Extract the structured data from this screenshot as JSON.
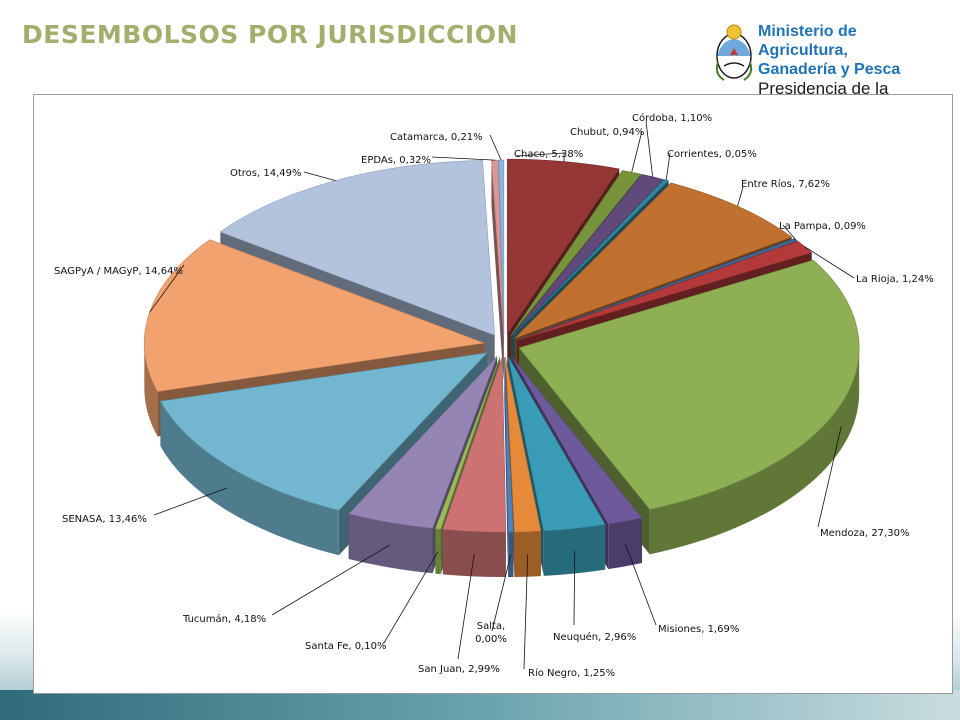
{
  "page": {
    "title": "DESEMBOLSOS POR JURISDICCION"
  },
  "logo": {
    "line1": "Ministerio de Agricultura,",
    "line2": "Ganadería y Pesca",
    "line3": "Presidencia de la Nación"
  },
  "chart_data": {
    "type": "pie",
    "title": "",
    "style": "3d-exploded",
    "unit": "%",
    "slices": [
      {
        "name": "Chaco",
        "value": 5.38,
        "display": "Chaco, 5,38%",
        "color": "#953735"
      },
      {
        "name": "Chubut",
        "value": 0.94,
        "display": "Chubut, 0,94%",
        "color": "#77933c"
      },
      {
        "name": "Córdoba",
        "value": 1.1,
        "display": "Córdoba, 1,10%",
        "color": "#604a7b"
      },
      {
        "name": "Corrientes",
        "value": 0.05,
        "display": "Corrientes, 0,05%",
        "color": "#31859c"
      },
      {
        "name": "Entre Ríos",
        "value": 7.62,
        "display": "Entre Ríos, 7,62%",
        "color": "#c0712f"
      },
      {
        "name": "La Pampa",
        "value": 0.09,
        "display": "La Pampa, 0,09%",
        "color": "#3f6797"
      },
      {
        "name": "La Rioja",
        "value": 1.24,
        "display": "La Rioja, 1,24%",
        "color": "#b3393a"
      },
      {
        "name": "Mendoza",
        "value": 27.3,
        "display": "Mendoza, 27,30%",
        "color": "#8eaf53"
      },
      {
        "name": "Misiones",
        "value": 1.69,
        "display": "Misiones, 1,69%",
        "color": "#6e5a9a"
      },
      {
        "name": "Neuquén",
        "value": 2.96,
        "display": "Neuquén, 2,96%",
        "color": "#3a9cb6"
      },
      {
        "name": "Río Negro",
        "value": 1.25,
        "display": "Río Negro, 1,25%",
        "color": "#e68a3a"
      },
      {
        "name": "Salta",
        "value": 0.0,
        "display": "Salta,\n0,00%",
        "color": "#4f81bd"
      },
      {
        "name": "San Juan",
        "value": 2.99,
        "display": "San Juan, 2,99%",
        "color": "#cc7272"
      },
      {
        "name": "Santa Fe",
        "value": 0.1,
        "display": "Santa Fe, 0,10%",
        "color": "#9bbb59"
      },
      {
        "name": "Tucumán",
        "value": 4.18,
        "display": "Tucumán, 4,18%",
        "color": "#9485b5"
      },
      {
        "name": "SENASA",
        "value": 13.46,
        "display": "SENASA, 13,46%",
        "color": "#72b6cf"
      },
      {
        "name": "SAGPyA / MAGyP",
        "value": 14.64,
        "display": "SAGPyA / MAGyP, 14,64%",
        "color": "#f2a26e"
      },
      {
        "name": "Otros",
        "value": 14.49,
        "display": "Otros, 14,49%",
        "color": "#b3c3de"
      },
      {
        "name": "EPDAs",
        "value": 0.32,
        "display": "EPDAs, 0,32%",
        "color": "#d99694"
      },
      {
        "name": "Catamarca",
        "value": 0.21,
        "display": "Catamarca, 0,21%",
        "color": "#8cb4e2"
      }
    ]
  }
}
